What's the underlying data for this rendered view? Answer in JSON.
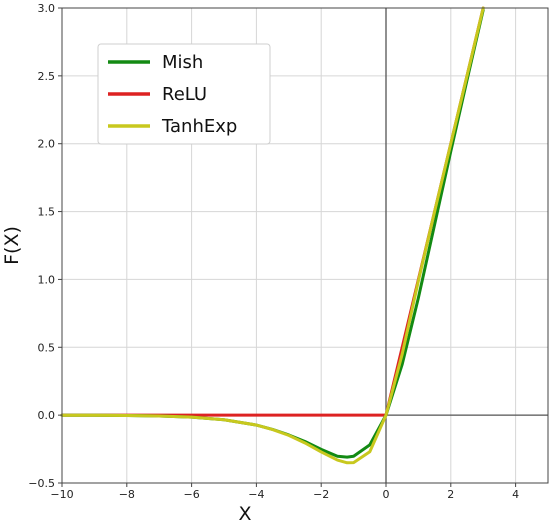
{
  "chart_data": {
    "type": "line",
    "title": "",
    "xlabel": "X",
    "ylabel": "F(X)",
    "xlim": [
      -10,
      5
    ],
    "ylim": [
      -0.5,
      3.0
    ],
    "xticks": [
      -10,
      -8,
      -6,
      -4,
      -2,
      0,
      2,
      4
    ],
    "yticks": [
      -0.5,
      0.0,
      0.5,
      1.0,
      1.5,
      2.0,
      2.5,
      3.0
    ],
    "xtick_labels": [
      "−10",
      "−8",
      "−6",
      "−4",
      "−2",
      "0",
      "2",
      "4"
    ],
    "ytick_labels": [
      "−0.5",
      "0.0",
      "0.5",
      "1.0",
      "1.5",
      "2.0",
      "2.5",
      "3.0"
    ],
    "grid": true,
    "legend_position": "upper-left",
    "series": [
      {
        "name": "Mish",
        "color": "#138a13",
        "x": [
          -10,
          -9,
          -8,
          -7,
          -6,
          -5,
          -4,
          -3.5,
          -3,
          -2.5,
          -2,
          -1.5,
          -1.2,
          -1,
          -0.5,
          0,
          0.5,
          1,
          1.5,
          2,
          2.5,
          3
        ],
        "y": [
          -0.0005,
          -0.001,
          -0.003,
          -0.006,
          -0.015,
          -0.034,
          -0.073,
          -0.105,
          -0.146,
          -0.194,
          -0.252,
          -0.303,
          -0.309,
          -0.303,
          -0.219,
          0,
          0.375,
          0.865,
          1.404,
          1.944,
          2.468,
          2.986
        ]
      },
      {
        "name": "ReLU",
        "color": "#dd2222",
        "x": [
          -10,
          0,
          3
        ],
        "y": [
          0,
          0,
          3
        ]
      },
      {
        "name": "TanhExp",
        "color": "#c8c81e",
        "x": [
          -10,
          -9,
          -8,
          -7,
          -6,
          -5,
          -4,
          -3.5,
          -3,
          -2.5,
          -2,
          -1.5,
          -1.2,
          -1,
          -0.5,
          0,
          0.5,
          1,
          1.5,
          2,
          2.5,
          3
        ],
        "y": [
          -0.0005,
          -0.001,
          -0.003,
          -0.006,
          -0.015,
          -0.034,
          -0.073,
          -0.106,
          -0.149,
          -0.205,
          -0.271,
          -0.331,
          -0.351,
          -0.35,
          -0.27,
          0,
          0.45,
          0.99,
          1.5,
          2.0,
          2.5,
          3.0
        ]
      }
    ]
  }
}
